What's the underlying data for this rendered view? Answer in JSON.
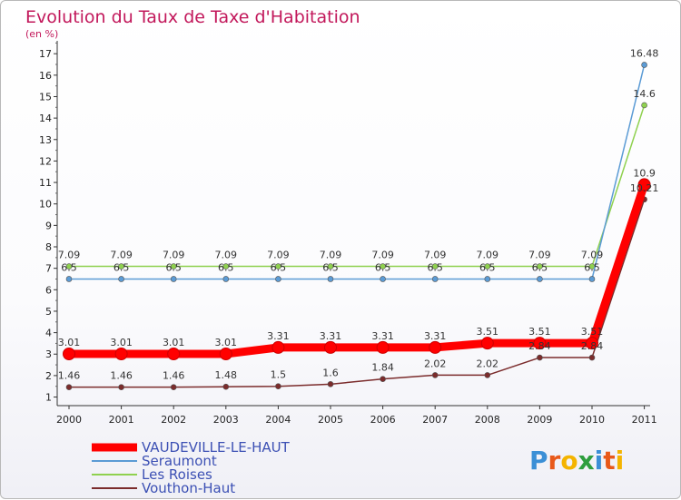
{
  "chart_data": {
    "type": "line",
    "title": "Evolution du Taux de Taxe d'Habitation",
    "subtitle": "(en %)",
    "x": [
      "2000",
      "2001",
      "2002",
      "2003",
      "2004",
      "2005",
      "2006",
      "2007",
      "2008",
      "2009",
      "2010",
      "2011"
    ],
    "y_ticks": [
      "1",
      "2",
      "3",
      "4",
      "5",
      "6",
      "7",
      "8",
      "9",
      "10",
      "11",
      "12",
      "13",
      "14",
      "15",
      "16",
      "17"
    ],
    "ylim": [
      0.6,
      17.6
    ],
    "grid": false,
    "legend_position": "bottom-left",
    "series": [
      {
        "name": "VAUDEVILLE-LE-HAUT",
        "color": "#ff0000",
        "values": [
          3.01,
          3.01,
          3.01,
          3.01,
          3.31,
          3.31,
          3.31,
          3.31,
          3.51,
          3.51,
          3.51,
          10.9
        ],
        "labels": [
          "3.01",
          "3.01",
          "3.01",
          "3.01",
          "3.31",
          "3.31",
          "3.31",
          "3.31",
          "3.51",
          "3.51",
          "3.51",
          "10.9"
        ]
      },
      {
        "name": "Seraumont",
        "color": "#5b9bd5",
        "values": [
          6.5,
          6.5,
          6.5,
          6.5,
          6.5,
          6.5,
          6.5,
          6.5,
          6.5,
          6.5,
          6.5,
          16.48
        ],
        "labels": [
          "6.5",
          "6.5",
          "6.5",
          "6.5",
          "6.5",
          "6.5",
          "6.5",
          "6.5",
          "6.5",
          "6.5",
          "6.5",
          "16.48"
        ]
      },
      {
        "name": "Les Roises",
        "color": "#8fd14f",
        "values": [
          7.09,
          7.09,
          7.09,
          7.09,
          7.09,
          7.09,
          7.09,
          7.09,
          7.09,
          7.09,
          7.09,
          14.6
        ],
        "labels": [
          "7.09",
          "7.09",
          "7.09",
          "7.09",
          "7.09",
          "7.09",
          "7.09",
          "7.09",
          "7.09",
          "7.09",
          "7.09",
          "14.6"
        ]
      },
      {
        "name": "Vouthon-Haut",
        "color": "#7b2c2c",
        "values": [
          1.46,
          1.46,
          1.46,
          1.48,
          1.5,
          1.6,
          1.84,
          2.02,
          2.02,
          2.84,
          2.84,
          10.21
        ],
        "labels": [
          "1.46",
          "1.46",
          "1.46",
          "1.48",
          "1.5",
          "1.6",
          "1.84",
          "2.02",
          "2.02",
          "2.84",
          "2.84",
          "10.21"
        ]
      }
    ]
  },
  "brand": {
    "letters": [
      "P",
      "r",
      "o",
      "x",
      "i",
      "t",
      "i"
    ],
    "colors": [
      "#3b8fd6",
      "#e8591a",
      "#f4b400",
      "#2e9e3e",
      "#3b8fd6",
      "#e8591a",
      "#f4b400"
    ]
  }
}
